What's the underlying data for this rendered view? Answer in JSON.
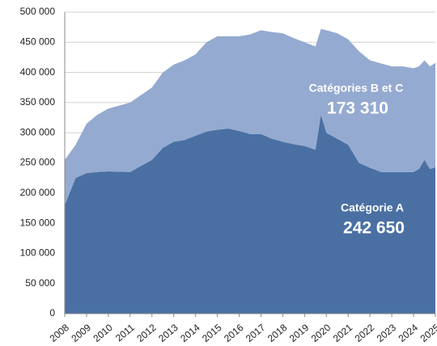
{
  "chart_data": {
    "type": "stacked-area",
    "x": [
      2008,
      2008.5,
      2009,
      2009.5,
      2010,
      2011,
      2012,
      2012.5,
      2013,
      2013.5,
      2014,
      2014.5,
      2015,
      2015.5,
      2016,
      2016.5,
      2017,
      2017.5,
      2018,
      2018.5,
      2019,
      2019.5,
      2019.75,
      2020,
      2020.5,
      2021,
      2021.5,
      2022,
      2022.5,
      2023,
      2023.5,
      2024,
      2024.25,
      2024.5,
      2024.75,
      2025
    ],
    "series": [
      {
        "name": "Catégorie A",
        "color": "#4a70a3",
        "values": [
          180000,
          225000,
          233000,
          235000,
          236000,
          235000,
          255000,
          275000,
          285000,
          288000,
          295000,
          302000,
          305000,
          307000,
          303000,
          298000,
          298000,
          290000,
          285000,
          281000,
          278000,
          272000,
          330000,
          300000,
          290000,
          280000,
          250000,
          242000,
          235000,
          235000,
          235000,
          235000,
          240000,
          255000,
          240000,
          242650
        ],
        "value_labels": [
          null,
          null,
          null,
          null,
          null,
          null,
          null,
          null,
          null,
          null,
          null,
          null,
          null,
          null,
          null,
          null,
          null,
          null,
          null,
          null,
          null,
          null,
          null,
          null,
          null,
          null,
          null,
          null,
          null,
          null,
          null,
          null,
          null,
          null,
          null,
          "242 650"
        ]
      },
      {
        "name": "Catégories B et C",
        "color": "#94aad0",
        "values": [
          75000,
          55000,
          82000,
          95000,
          104000,
          115000,
          120000,
          125000,
          128000,
          132000,
          135000,
          148000,
          155000,
          153000,
          157000,
          165000,
          172000,
          177000,
          180000,
          176000,
          172000,
          171000,
          142000,
          170000,
          175000,
          175000,
          185000,
          178000,
          180000,
          175000,
          175000,
          172000,
          170000,
          165000,
          170000,
          173310
        ],
        "value_labels": [
          null,
          null,
          null,
          null,
          null,
          null,
          null,
          null,
          null,
          null,
          null,
          null,
          null,
          null,
          null,
          null,
          null,
          null,
          null,
          null,
          null,
          null,
          null,
          null,
          null,
          null,
          null,
          null,
          null,
          null,
          null,
          null,
          null,
          null,
          null,
          "173 310"
        ]
      }
    ],
    "xlim": [
      2008,
      2025
    ],
    "xticks": [
      2008,
      2009,
      2010,
      2011,
      2012,
      2013,
      2014,
      2015,
      2016,
      2017,
      2018,
      2019,
      2020,
      2021,
      2022,
      2023,
      2024,
      2025
    ],
    "ylim": [
      0,
      500000
    ],
    "yticks": [
      {
        "value": 0,
        "label": "0"
      },
      {
        "value": 50000,
        "label": "50 000"
      },
      {
        "value": 100000,
        "label": "100 000"
      },
      {
        "value": 150000,
        "label": "150 000"
      },
      {
        "value": 200000,
        "label": "200 000"
      },
      {
        "value": 250000,
        "label": "250 000"
      },
      {
        "value": 300000,
        "label": "300 000"
      },
      {
        "value": 350000,
        "label": "350 000"
      },
      {
        "value": 400000,
        "label": "400 000"
      },
      {
        "value": 450000,
        "label": "450 000"
      },
      {
        "value": 500000,
        "label": "500 000"
      }
    ],
    "grid": true
  }
}
